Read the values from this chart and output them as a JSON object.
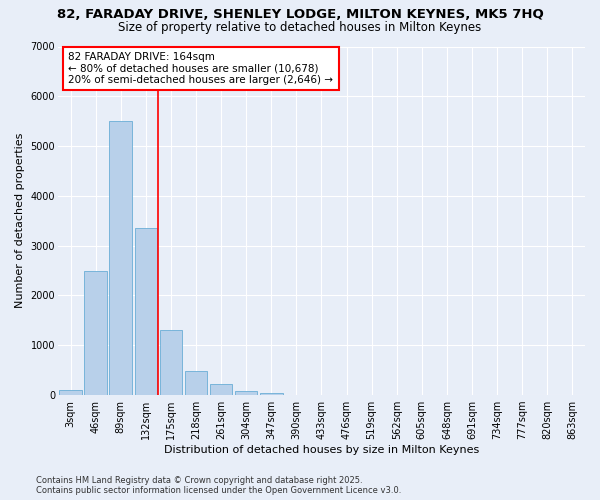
{
  "title1": "82, FARADAY DRIVE, SHENLEY LODGE, MILTON KEYNES, MK5 7HQ",
  "title2": "Size of property relative to detached houses in Milton Keynes",
  "xlabel": "Distribution of detached houses by size in Milton Keynes",
  "ylabel": "Number of detached properties",
  "bar_labels": [
    "3sqm",
    "46sqm",
    "89sqm",
    "132sqm",
    "175sqm",
    "218sqm",
    "261sqm",
    "304sqm",
    "347sqm",
    "390sqm",
    "433sqm",
    "476sqm",
    "519sqm",
    "562sqm",
    "605sqm",
    "648sqm",
    "691sqm",
    "734sqm",
    "777sqm",
    "820sqm",
    "863sqm"
  ],
  "bar_values": [
    100,
    2500,
    5500,
    3350,
    1300,
    480,
    220,
    90,
    50,
    0,
    0,
    0,
    0,
    0,
    0,
    0,
    0,
    0,
    0,
    0,
    0
  ],
  "bar_color": "#b8d0ea",
  "bar_edge_color": "#6aaed6",
  "vline_color": "red",
  "annotation_text": "82 FARADAY DRIVE: 164sqm\n← 80% of detached houses are smaller (10,678)\n20% of semi-detached houses are larger (2,646) →",
  "annotation_box_color": "white",
  "annotation_box_edge": "red",
  "ylim": [
    0,
    7000
  ],
  "yticks": [
    0,
    1000,
    2000,
    3000,
    4000,
    5000,
    6000,
    7000
  ],
  "bg_color": "#e8eef8",
  "plot_bg_color": "#e8eef8",
  "footer": "Contains HM Land Registry data © Crown copyright and database right 2025.\nContains public sector information licensed under the Open Government Licence v3.0.",
  "title_fontsize": 9.5,
  "subtitle_fontsize": 8.5,
  "tick_fontsize": 7,
  "label_fontsize": 8,
  "annotation_fontsize": 7.5,
  "footer_fontsize": 6
}
